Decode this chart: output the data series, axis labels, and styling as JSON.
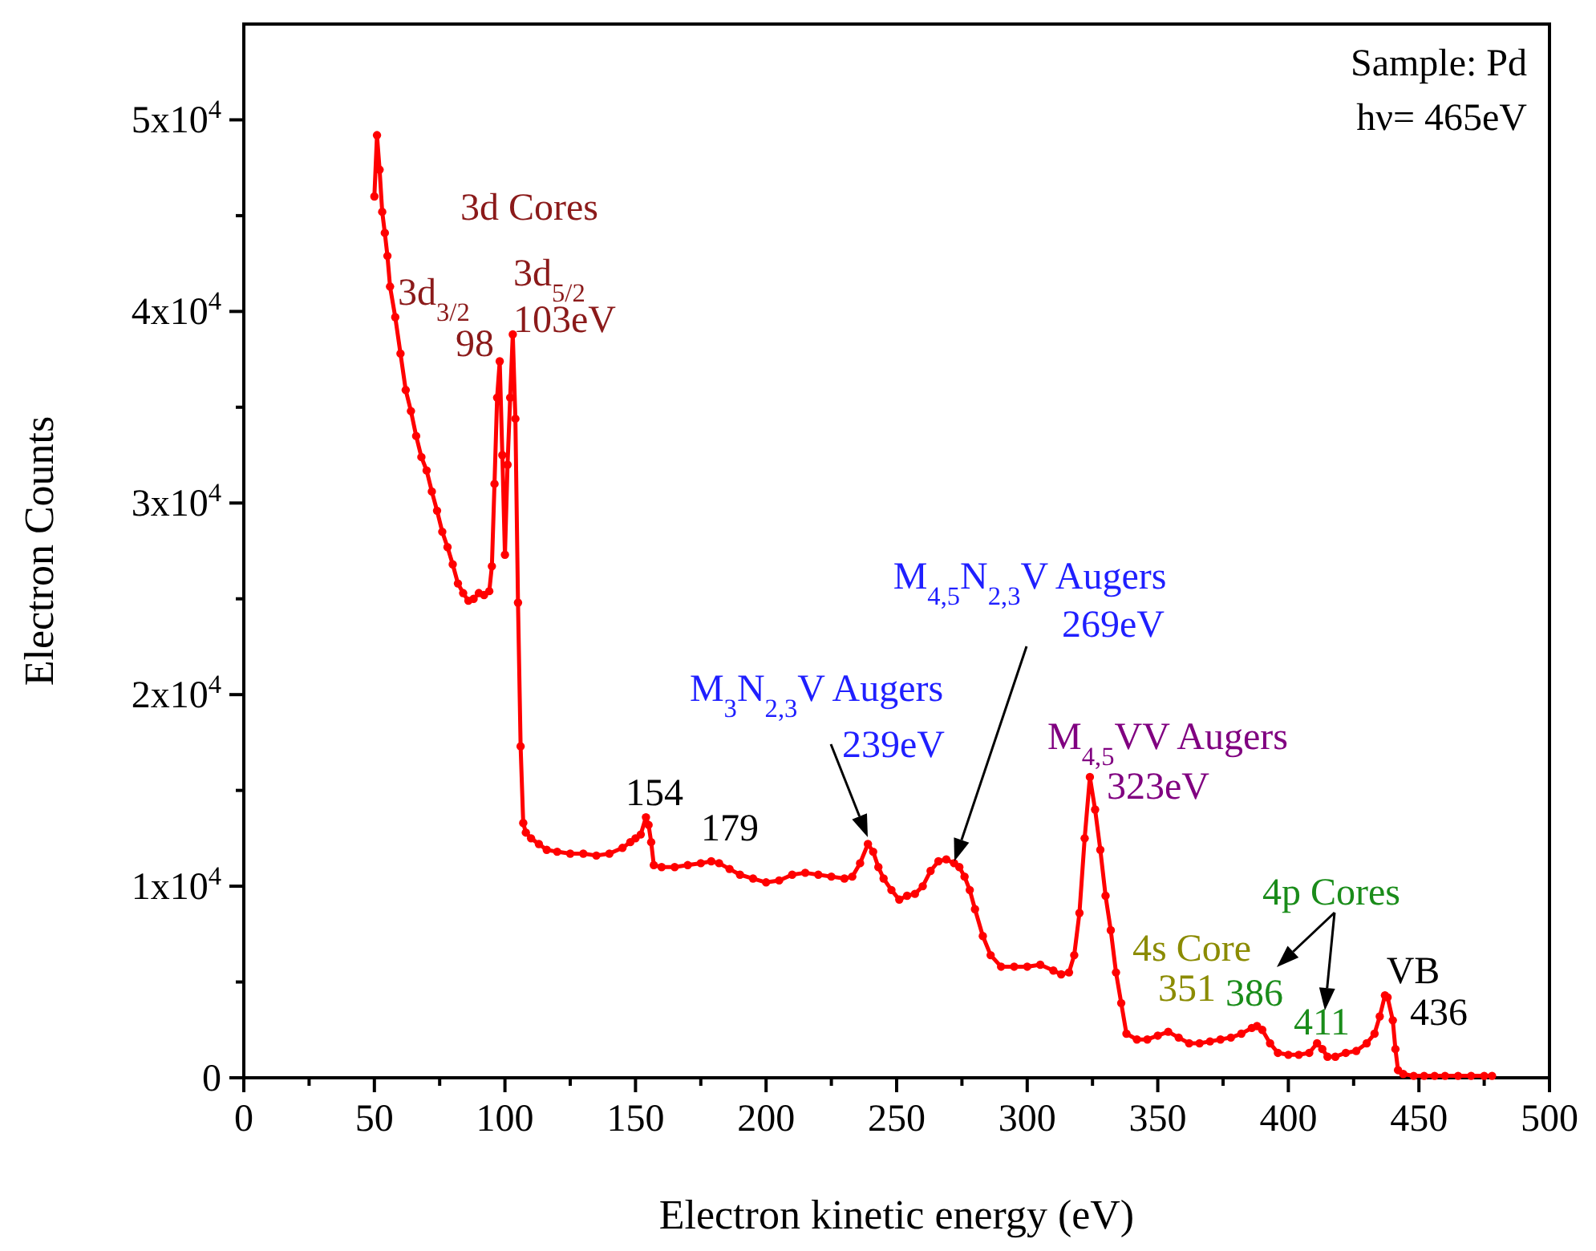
{
  "chart_data": {
    "type": "line",
    "xlabel": "Electron kinetic energy (eV)",
    "ylabel": "Electron Counts",
    "xlim": [
      0,
      500
    ],
    "ylim": [
      0,
      55000
    ],
    "xticks": [
      0,
      {
        "value": 25,
        "label": null
      },
      50,
      {
        "value": 75,
        "label": null
      },
      100,
      {
        "value": 125,
        "label": null
      },
      150,
      {
        "value": 175,
        "label": null
      },
      200,
      {
        "value": 225,
        "label": null
      },
      250,
      {
        "value": 275,
        "label": null
      },
      300,
      {
        "value": 325,
        "label": null
      },
      350,
      {
        "value": 375,
        "label": null
      },
      400,
      {
        "value": 425,
        "label": null
      },
      450,
      {
        "value": 475,
        "label": null
      },
      500
    ],
    "yticks": [
      0,
      {
        "value": 5000,
        "label": null
      },
      {
        "value": 10000,
        "label": "1x10$^{4}$"
      },
      {
        "value": 15000,
        "label": null
      },
      {
        "value": 20000,
        "label": "2x10$^{4}$"
      },
      {
        "value": 25000,
        "label": null
      },
      {
        "value": 30000,
        "label": "3x10$^{4}$"
      },
      {
        "value": 35000,
        "label": null
      },
      {
        "value": 40000,
        "label": "4x10$^{4}$"
      },
      {
        "value": 45000,
        "label": null
      },
      {
        "value": 50000,
        "label": "5x10$^{4}$"
      }
    ],
    "grid": false,
    "marker": "circle",
    "line_style": "solid",
    "series": [
      {
        "color": "#ff0000",
        "x": [
          50,
          51,
          52,
          53,
          54,
          55,
          56,
          58,
          60,
          62,
          64,
          66,
          68,
          70,
          72,
          74,
          76,
          78,
          80,
          82,
          84,
          86,
          88,
          90,
          92,
          94,
          95,
          96,
          97,
          98,
          99,
          100,
          101,
          102,
          103,
          104,
          105,
          106,
          107,
          108,
          110,
          113,
          116,
          120,
          125,
          130,
          135,
          140,
          145,
          148,
          150,
          152,
          154,
          155,
          156,
          157,
          160,
          165,
          170,
          175,
          179,
          182,
          186,
          190,
          195,
          200,
          205,
          210,
          215,
          220,
          225,
          230,
          233,
          236,
          239,
          241,
          243,
          245,
          248,
          251,
          254,
          257,
          260,
          263,
          266,
          269,
          272,
          274,
          276,
          278,
          280,
          283,
          286,
          290,
          295,
          300,
          305,
          310,
          313,
          316,
          318,
          320,
          322,
          324,
          326,
          328,
          330,
          332,
          334,
          336,
          338,
          342,
          346,
          350,
          354,
          358,
          362,
          366,
          370,
          374,
          378,
          382,
          386,
          388,
          390,
          393,
          396,
          400,
          404,
          408,
          411,
          413,
          415,
          418,
          422,
          426,
          430,
          433,
          435,
          437,
          438,
          440,
          441,
          442,
          444,
          448,
          452,
          456,
          460,
          465,
          470,
          475,
          478
        ],
        "values": [
          46000,
          49200,
          47400,
          45200,
          44100,
          42900,
          41300,
          39700,
          37800,
          35900,
          34800,
          33500,
          32400,
          31700,
          30600,
          29600,
          28500,
          27700,
          26800,
          25800,
          25300,
          24900,
          25000,
          25300,
          25200,
          25400,
          26700,
          31000,
          35500,
          37400,
          32500,
          27300,
          32000,
          35500,
          38800,
          34400,
          24800,
          17300,
          13300,
          12800,
          12500,
          12200,
          11900,
          11800,
          11700,
          11700,
          11600,
          11700,
          12000,
          12300,
          12500,
          12700,
          13600,
          13200,
          12300,
          11100,
          11000,
          11000,
          11100,
          11200,
          11300,
          11200,
          10900,
          10600,
          10400,
          10200,
          10300,
          10600,
          10700,
          10600,
          10500,
          10400,
          10500,
          11200,
          12200,
          11800,
          11000,
          10400,
          9800,
          9300,
          9500,
          9600,
          10000,
          10800,
          11300,
          11400,
          11200,
          11000,
          10500,
          9800,
          8800,
          7400,
          6400,
          5800,
          5800,
          5800,
          5900,
          5600,
          5400,
          5500,
          6400,
          8600,
          12500,
          15700,
          14000,
          11900,
          9500,
          7700,
          5500,
          3900,
          2300,
          2000,
          2000,
          2200,
          2400,
          2100,
          1800,
          1800,
          1900,
          2000,
          2100,
          2300,
          2600,
          2700,
          2500,
          1800,
          1300,
          1200,
          1200,
          1300,
          1800,
          1500,
          1100,
          1100,
          1300,
          1400,
          1800,
          2300,
          3200,
          4300,
          4200,
          3000,
          1500,
          400,
          200,
          100,
          100,
          100,
          100,
          100,
          100,
          100,
          100
        ]
      }
    ],
    "annotations": [
      "Sample: Pd",
      "hν= 465eV",
      "3d Cores",
      "3d$_{3/2}$",
      "98",
      "3d$_{5/2}$",
      "103eV",
      "154",
      "179",
      "M$_{3}$N$_{2,3}$V Augers",
      "239eV",
      "M$_{4,5}$N$_{2,3}$V Augers",
      "269eV",
      "M$_{4,5}$VV Augers",
      "323eV",
      "4s Core",
      "351",
      "4p Cores",
      "386",
      "411",
      "VB",
      "436"
    ]
  }
}
